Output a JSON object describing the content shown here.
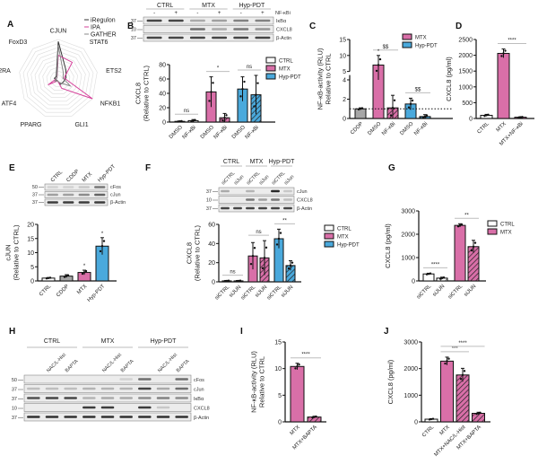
{
  "colors": {
    "ctrl": "#ffffff",
    "cddp": "#a6a6a6",
    "mtx": "#d96fa8",
    "hyp": "#4aa9dc",
    "ipa": "#d6409a",
    "iregulon": "#333333",
    "gather": "#888888",
    "axis": "#111111",
    "sigline": "#bdbdbd"
  },
  "chart_data": [
    {
      "panel": "A",
      "type": "radar",
      "axes": [
        "CJUN",
        "STAT6",
        "ETS2",
        "NFKB1",
        "GLI1",
        "PPARG",
        "ATF4",
        "POL2RA",
        "FoxD3"
      ],
      "rlim": [
        0,
        1
      ],
      "legend": [
        "iRegulon",
        "IPA",
        "GATHER"
      ],
      "series": [
        {
          "name": "iRegulon",
          "values": [
            0.95,
            0.3,
            0.2,
            0.15,
            0.15,
            0.05,
            0.05,
            0.1,
            0.08
          ]
        },
        {
          "name": "IPA",
          "values": [
            0.6,
            0.55,
            0.15,
            1.0,
            0.25,
            0.05,
            0.3,
            0.05,
            0.05
          ]
        },
        {
          "name": "GATHER",
          "values": [
            0.85,
            0.2,
            0.12,
            0.35,
            0.1,
            0.05,
            0.1,
            0.05,
            0.05
          ]
        }
      ]
    },
    {
      "panel": "B",
      "type": "bar",
      "blot": {
        "groups": [
          "CTRL",
          "MTX",
          "Hyp-PDT"
        ],
        "lane_labels": [
          "-",
          "+",
          "-",
          "+",
          "-",
          "+"
        ],
        "treatment_label": "NF-κBi",
        "bands": [
          "IκBα",
          "CXCL8",
          "β-Actin"
        ],
        "markers": [
          "37",
          "10",
          "37"
        ]
      },
      "categories": [
        "DMSO",
        "NF-κBi",
        "DMSO",
        "NF-κBi",
        "DMSO",
        "NF-κBi"
      ],
      "groups": [
        "CTRL",
        "CTRL",
        "MTX",
        "MTX",
        "Hyp-PDT",
        "Hyp-PDT"
      ],
      "hatched": [
        false,
        true,
        false,
        true,
        false,
        true
      ],
      "values": [
        1,
        2,
        42,
        6,
        46,
        38
      ],
      "errors": [
        0.5,
        1.5,
        21,
        6,
        17,
        27
      ],
      "ylabel": "CXCL8\n(Relative to CTRL)",
      "ylim": [
        0,
        80
      ],
      "yticks": [
        0,
        20,
        40,
        60,
        80
      ],
      "significance": [
        {
          "from": 0,
          "to": 1,
          "label": "ns"
        },
        {
          "from": 2,
          "to": 3,
          "label": "*"
        },
        {
          "from": 4,
          "to": 5,
          "label": "ns"
        }
      ],
      "legend": [
        "CTRL",
        "MTX",
        "Hyp-PDT"
      ],
      "legend_position": "right"
    },
    {
      "panel": "C",
      "type": "bar",
      "categories": [
        "CDDP",
        "DMSO",
        "NF-κBi",
        "DMSO",
        "NF-κBi"
      ],
      "groups": [
        "CDDP",
        "MTX",
        "MTX",
        "Hyp-PDT",
        "Hyp-PDT"
      ],
      "hatched": [
        false,
        false,
        true,
        false,
        true
      ],
      "values": [
        1.0,
        7.0,
        1.1,
        1.5,
        0.2
      ],
      "errors": [
        0.1,
        3.0,
        1.3,
        0.6,
        0.2
      ],
      "ylabel": "NF-κB-activity (RLU)\nRelative to CTRL",
      "ylim": [
        0,
        15
      ],
      "axis_break": [
        4.5,
        5
      ],
      "yticks": [
        0,
        2,
        4,
        5,
        10,
        15
      ],
      "reference_line": 1,
      "significance": [
        {
          "from": 1,
          "to": 2,
          "label": "$$"
        },
        {
          "from": 3,
          "to": 4,
          "label": "$$"
        },
        {
          "over": 1,
          "label": "*"
        }
      ],
      "legend": [
        "MTX",
        "Hyp-PDT"
      ],
      "legend_position": "top-right"
    },
    {
      "panel": "D",
      "type": "bar",
      "categories": [
        "CTRL",
        "MTX",
        "MTX+NF-κBi"
      ],
      "groups": [
        "CTRL",
        "MTX",
        "MTX"
      ],
      "hatched": [
        false,
        false,
        true
      ],
      "values": [
        100,
        2060,
        40
      ],
      "errors": [
        30,
        140,
        15
      ],
      "ylabel": "CXCL8 (pg/ml)",
      "ylim": [
        0,
        2500
      ],
      "yticks": [
        0,
        500,
        1000,
        1500,
        2000,
        2500
      ],
      "significance": [
        {
          "from": 1,
          "to": 2,
          "label": "****"
        }
      ]
    },
    {
      "panel": "E",
      "type": "bar",
      "blot": {
        "lane_labels": [
          "CTRL",
          "CDDP",
          "MTX",
          "Hyp-PDT"
        ],
        "bands": [
          "cFos",
          "cJun",
          "β-Actin"
        ],
        "markers": [
          "50",
          "37",
          "37"
        ]
      },
      "categories": [
        "CTRL",
        "CDDP",
        "MTX",
        "Hyp-PDT"
      ],
      "groups": [
        "CTRL",
        "CDDP",
        "MTX",
        "Hyp-PDT"
      ],
      "hatched": [
        false,
        false,
        false,
        false
      ],
      "values": [
        1,
        1.7,
        3.0,
        12.3
      ],
      "errors": [
        0.2,
        0.5,
        0.8,
        3.0
      ],
      "ylabel": "cJUN\n(Relative to CTRL)",
      "ylim": [
        0,
        20
      ],
      "yticks": [
        0,
        5,
        10,
        15,
        20
      ],
      "significance": [
        {
          "over": 2,
          "label": "*"
        },
        {
          "over": 3,
          "label": "*"
        }
      ]
    },
    {
      "panel": "F",
      "type": "bar",
      "blot": {
        "groups": [
          "CTRL",
          "MTX",
          "Hyp-PDT"
        ],
        "lane_labels": [
          "siCTRL",
          "siJun",
          "siCTRL",
          "siJun",
          "siCTRL",
          "siJun"
        ],
        "bands": [
          "cJun",
          "CXCL8",
          "β-Actin"
        ],
        "markers": [
          "37",
          "10",
          "37"
        ]
      },
      "categories": [
        "siCTRL",
        "siJUN",
        "siCTRL",
        "siJUN",
        "siCTRL",
        "siJUN"
      ],
      "groups": [
        "CTRL",
        "CTRL",
        "MTX",
        "MTX",
        "Hyp-PDT",
        "Hyp-PDT"
      ],
      "hatched": [
        false,
        true,
        false,
        true,
        false,
        true
      ],
      "values": [
        1,
        1,
        27,
        25,
        45,
        17
      ],
      "errors": [
        0.3,
        0.3,
        14,
        18,
        10,
        5
      ],
      "ylabel": "CXCL8\n(Relative to CTRL)",
      "ylim": [
        0,
        60
      ],
      "yticks": [
        0,
        20,
        40,
        60
      ],
      "significance": [
        {
          "from": 0,
          "to": 1,
          "label": "ns"
        },
        {
          "from": 2,
          "to": 3,
          "label": "ns"
        },
        {
          "from": 4,
          "to": 5,
          "label": "**"
        }
      ],
      "legend": [
        "CTRL",
        "MTX",
        "Hyp-PDT"
      ],
      "legend_position": "right"
    },
    {
      "panel": "G",
      "type": "bar",
      "categories": [
        "siCTRL",
        "siJUN",
        "siCTRL",
        "siJUN"
      ],
      "groups": [
        "CTRL",
        "CTRL",
        "MTX",
        "MTX"
      ],
      "hatched": [
        false,
        true,
        false,
        true
      ],
      "values": [
        300,
        120,
        2380,
        1470
      ],
      "errors": [
        30,
        40,
        70,
        270
      ],
      "ylabel": "CXCL8 (pg/ml)",
      "ylim": [
        0,
        3000
      ],
      "yticks": [
        0,
        1000,
        2000,
        3000
      ],
      "significance": [
        {
          "from": 0,
          "to": 1,
          "label": "****"
        },
        {
          "from": 2,
          "to": 3,
          "label": "**"
        }
      ],
      "legend": [
        "CTRL",
        "MTX"
      ],
      "legend_position": "right"
    },
    {
      "panel": "H",
      "type": "blot",
      "groups": [
        "CTRL",
        "MTX",
        "Hyp-PDT"
      ],
      "lane_labels": [
        "",
        "NAC/L-Hist",
        "BAPTA",
        "",
        "NAC/L-Hist",
        "BAPTA",
        "",
        "NAC/L-Hist",
        "BAPTA"
      ],
      "bands": [
        "cFos",
        "cJun",
        "IκBα",
        "CXCL8",
        "β-Actin"
      ],
      "markers": [
        "50",
        "37",
        "37",
        "10",
        "37"
      ]
    },
    {
      "panel": "I",
      "type": "bar",
      "categories": [
        "MTX",
        "MTX+BAPTA"
      ],
      "groups": [
        "MTX",
        "MTX"
      ],
      "hatched": [
        false,
        true
      ],
      "values": [
        10.4,
        0.9
      ],
      "errors": [
        0.6,
        0.15
      ],
      "ylabel": "NF-κB-activity (RLU)\nRelative to CTRL",
      "ylim": [
        0,
        15
      ],
      "yticks": [
        0,
        5,
        10,
        15
      ],
      "significance": [
        {
          "from": 0,
          "to": 1,
          "label": "****"
        }
      ]
    },
    {
      "panel": "J",
      "type": "bar",
      "categories": [
        "CTRL",
        "MTX",
        "MTX+NAC/L-Hist",
        "MTX+BAPTA"
      ],
      "groups": [
        "CTRL",
        "MTX",
        "MTX",
        "MTX"
      ],
      "hatched": [
        false,
        false,
        true,
        true
      ],
      "values": [
        100,
        2280,
        1760,
        320
      ],
      "errors": [
        20,
        150,
        250,
        40
      ],
      "ylabel": "CXCL8 (pg/ml)",
      "ylim": [
        0,
        3000
      ],
      "yticks": [
        0,
        1000,
        2000,
        3000
      ],
      "significance": [
        {
          "from": 1,
          "to": 2,
          "label": "***"
        },
        {
          "from": 1,
          "to": 3,
          "label": "****"
        }
      ]
    }
  ]
}
